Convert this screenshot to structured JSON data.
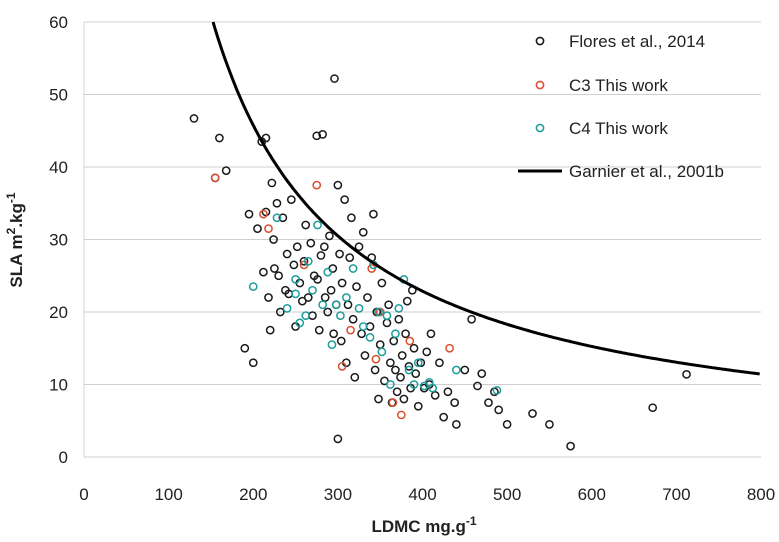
{
  "chart_data": {
    "type": "scatter",
    "title": "",
    "xlabel": "LDMC mg.g",
    "xlabel_sup": "-1",
    "ylabel": "SLA m",
    "ylabel_sup1": "2",
    "ylabel_mid": ".kg",
    "ylabel_sup2": "-1",
    "xlim": [
      0,
      800
    ],
    "ylim": [
      0,
      60
    ],
    "xticks": [
      "0",
      "100",
      "200",
      "300",
      "400",
      "500",
      "600",
      "700",
      "800"
    ],
    "yticks": [
      "0",
      "10",
      "20",
      "30",
      "40",
      "50",
      "60"
    ],
    "grid": "horizontal",
    "legend_position": "top-right",
    "colors": {
      "flores": "#1a1a1a",
      "c3": "#d9502f",
      "c4": "#1f9c9c",
      "garnier": "#000000",
      "grid": "#cfcfcf"
    },
    "series": [
      {
        "name": "Flores et al., 2014",
        "kind": "points",
        "points": [
          [
            130,
            46.7
          ],
          [
            155,
            38.5
          ],
          [
            160,
            44
          ],
          [
            168,
            39.5
          ],
          [
            190,
            15
          ],
          [
            195,
            33.5
          ],
          [
            200,
            13
          ],
          [
            205,
            31.5
          ],
          [
            210,
            43.5
          ],
          [
            212,
            25.5
          ],
          [
            215,
            44
          ],
          [
            215,
            33.8
          ],
          [
            218,
            22
          ],
          [
            220,
            17.5
          ],
          [
            222,
            37.8
          ],
          [
            224,
            30
          ],
          [
            225,
            26
          ],
          [
            228,
            35
          ],
          [
            230,
            25
          ],
          [
            232,
            20
          ],
          [
            235,
            33
          ],
          [
            238,
            23
          ],
          [
            240,
            28
          ],
          [
            242,
            22.5
          ],
          [
            245,
            35.5
          ],
          [
            248,
            26.5
          ],
          [
            250,
            18
          ],
          [
            252,
            29
          ],
          [
            255,
            24
          ],
          [
            258,
            21.5
          ],
          [
            260,
            27
          ],
          [
            262,
            32
          ],
          [
            265,
            22
          ],
          [
            268,
            29.5
          ],
          [
            270,
            19.5
          ],
          [
            272,
            25
          ],
          [
            275,
            44.3
          ],
          [
            276,
            24.5
          ],
          [
            278,
            17.5
          ],
          [
            280,
            27.8
          ],
          [
            282,
            44.5
          ],
          [
            284,
            29
          ],
          [
            285,
            22
          ],
          [
            288,
            20
          ],
          [
            290,
            30.5
          ],
          [
            292,
            23
          ],
          [
            294,
            26
          ],
          [
            295,
            17
          ],
          [
            296,
            52.2
          ],
          [
            298,
            21
          ],
          [
            300,
            37.5
          ],
          [
            300,
            2.5
          ],
          [
            302,
            28
          ],
          [
            304,
            16
          ],
          [
            305,
            24
          ],
          [
            308,
            35.5
          ],
          [
            310,
            13
          ],
          [
            312,
            21
          ],
          [
            314,
            27.5
          ],
          [
            316,
            33
          ],
          [
            318,
            19
          ],
          [
            320,
            11
          ],
          [
            322,
            23.5
          ],
          [
            325,
            29
          ],
          [
            328,
            17
          ],
          [
            330,
            31
          ],
          [
            332,
            14
          ],
          [
            335,
            22
          ],
          [
            338,
            18
          ],
          [
            340,
            27.5
          ],
          [
            342,
            33.5
          ],
          [
            344,
            12
          ],
          [
            346,
            20
          ],
          [
            348,
            8
          ],
          [
            350,
            15.5
          ],
          [
            352,
            24
          ],
          [
            355,
            10.5
          ],
          [
            358,
            18.5
          ],
          [
            360,
            21
          ],
          [
            362,
            13
          ],
          [
            364,
            7.5
          ],
          [
            366,
            16
          ],
          [
            368,
            12
          ],
          [
            370,
            9
          ],
          [
            372,
            19
          ],
          [
            374,
            11
          ],
          [
            376,
            14
          ],
          [
            378,
            8
          ],
          [
            380,
            17
          ],
          [
            382,
            21.5
          ],
          [
            384,
            12.5
          ],
          [
            386,
            9.5
          ],
          [
            388,
            23
          ],
          [
            390,
            15
          ],
          [
            392,
            11.5
          ],
          [
            395,
            7
          ],
          [
            398,
            13
          ],
          [
            402,
            9.5
          ],
          [
            405,
            14.5
          ],
          [
            408,
            10
          ],
          [
            410,
            17
          ],
          [
            415,
            8.5
          ],
          [
            420,
            13
          ],
          [
            425,
            5.5
          ],
          [
            430,
            9
          ],
          [
            438,
            7.5
          ],
          [
            440,
            4.5
          ],
          [
            450,
            12
          ],
          [
            458,
            19
          ],
          [
            465,
            9.8
          ],
          [
            470,
            11.5
          ],
          [
            478,
            7.5
          ],
          [
            485,
            9
          ],
          [
            490,
            6.5
          ],
          [
            500,
            4.5
          ],
          [
            530,
            6
          ],
          [
            550,
            4.5
          ],
          [
            575,
            1.5
          ],
          [
            672,
            6.8
          ],
          [
            712,
            11.4
          ]
        ]
      },
      {
        "name": "C3 This work",
        "kind": "points",
        "points": [
          [
            155,
            38.5
          ],
          [
            212,
            33.5
          ],
          [
            218,
            31.5
          ],
          [
            275,
            37.5
          ],
          [
            315,
            17.5
          ],
          [
            340,
            26
          ],
          [
            345,
            13.5
          ],
          [
            350,
            20
          ],
          [
            365,
            7.5
          ],
          [
            375,
            5.8
          ],
          [
            385,
            16
          ],
          [
            432,
            15
          ],
          [
            305,
            12.5
          ],
          [
            260,
            26.5
          ]
        ]
      },
      {
        "name": "C4 This work",
        "kind": "points",
        "points": [
          [
            200,
            23.5
          ],
          [
            228,
            33
          ],
          [
            240,
            20.5
          ],
          [
            250,
            24.5
          ],
          [
            255,
            18.5
          ],
          [
            262,
            19.5
          ],
          [
            270,
            23
          ],
          [
            276,
            32
          ],
          [
            282,
            21
          ],
          [
            288,
            25.5
          ],
          [
            293,
            15.5
          ],
          [
            298,
            21
          ],
          [
            303,
            19.5
          ],
          [
            310,
            22
          ],
          [
            318,
            26
          ],
          [
            325,
            20.5
          ],
          [
            330,
            18
          ],
          [
            338,
            16.5
          ],
          [
            342,
            26.5
          ],
          [
            348,
            20
          ],
          [
            352,
            14.5
          ],
          [
            358,
            19.5
          ],
          [
            362,
            10
          ],
          [
            368,
            17
          ],
          [
            372,
            20.5
          ],
          [
            378,
            24.5
          ],
          [
            384,
            12
          ],
          [
            390,
            10
          ],
          [
            395,
            13
          ],
          [
            402,
            9.8
          ],
          [
            408,
            10.3
          ],
          [
            412,
            9.5
          ],
          [
            440,
            12
          ],
          [
            488,
            9.2
          ],
          [
            250,
            22.5
          ],
          [
            265,
            27
          ]
        ]
      },
      {
        "name": "Garnier et al., 2001b",
        "kind": "line",
        "formula": "SLA = 9150 / LDMC"
      }
    ]
  }
}
